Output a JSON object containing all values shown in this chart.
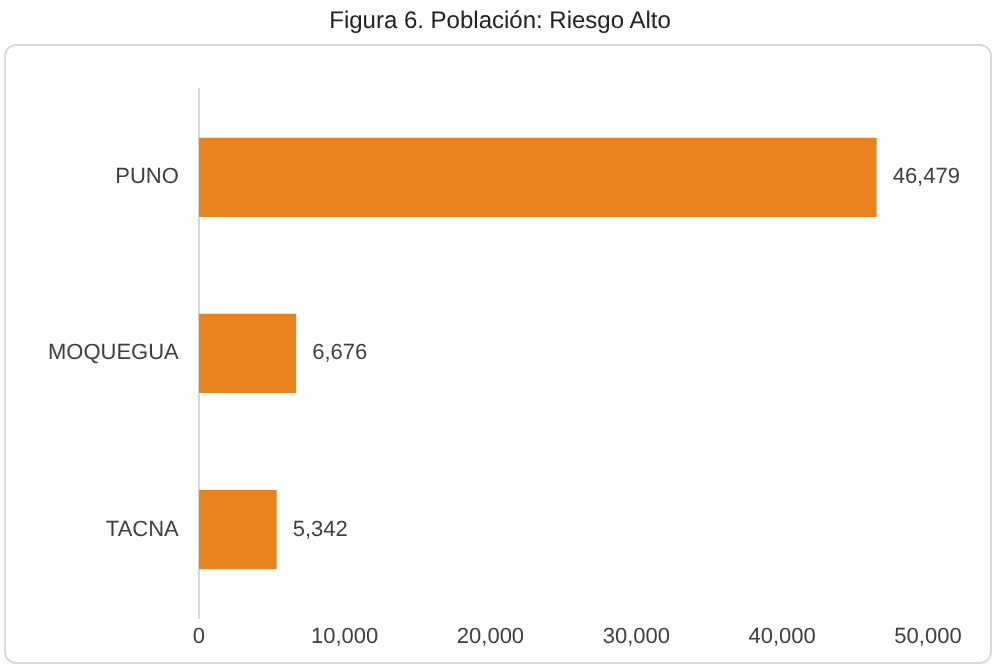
{
  "chart_data": {
    "type": "bar",
    "title": "Figura 6. Población: Riesgo Alto",
    "orientation": "horizontal",
    "categories": [
      "PUNO",
      "MOQUEGUA",
      "TACNA"
    ],
    "values": [
      46479,
      6676,
      5342
    ],
    "color": "#e8821e",
    "value_labels": [
      "46,479",
      "6,676",
      "5,342"
    ],
    "xlim": [
      0,
      50000
    ],
    "xticks": [
      0,
      {
        "value": 10000,
        "label": "10,000"
      },
      {
        "value": 20000,
        "label": "20,000"
      },
      {
        "value": 30000,
        "label": "30,000"
      },
      {
        "value": 40000,
        "label": "40,000"
      },
      {
        "value": 50000,
        "label": "50,000"
      }
    ],
    "grid": false,
    "legend": false
  }
}
